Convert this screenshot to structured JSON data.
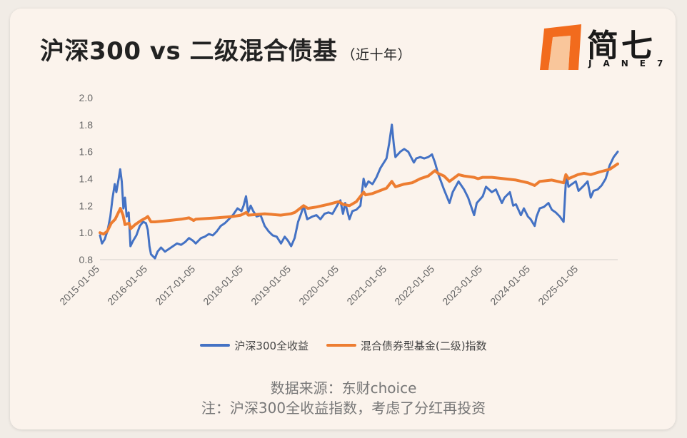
{
  "header": {
    "title": "沪深300 vs 二级混合债基",
    "subtitle": "（近十年）"
  },
  "logo": {
    "name": "简七",
    "en": "JANE7",
    "color": "#f26b1d"
  },
  "chart_data": {
    "type": "line",
    "title": "沪深300 vs 二级混合债基",
    "xlabel": "",
    "ylabel": "",
    "ylim": [
      0.8,
      2.0
    ],
    "yticks": [
      "0.8",
      "1.0",
      "1.2",
      "1.4",
      "1.6",
      "1.8",
      "2.0"
    ],
    "xtick_labels": [
      "2015-01-05",
      "2016-01-05",
      "2017-01-05",
      "2018-01-05",
      "2019-01-05",
      "2020-01-05",
      "2021-01-05",
      "2022-01-05",
      "2023-01-05",
      "2024-01-05",
      "2025-01-05"
    ],
    "x_range": [
      "2015-01-05",
      "2025-10-31"
    ],
    "grid": false,
    "legend_position": "bottom",
    "series": [
      {
        "name": "沪深300全收益",
        "color": "#4472c4",
        "points": [
          [
            "2015-01-05",
            0.98
          ],
          [
            "2015-01-20",
            0.92
          ],
          [
            "2015-02-10",
            0.95
          ],
          [
            "2015-03-05",
            1.02
          ],
          [
            "2015-03-25",
            1.12
          ],
          [
            "2015-04-10",
            1.25
          ],
          [
            "2015-04-28",
            1.36
          ],
          [
            "2015-05-10",
            1.3
          ],
          [
            "2015-05-28",
            1.4
          ],
          [
            "2015-06-08",
            1.47
          ],
          [
            "2015-06-20",
            1.38
          ],
          [
            "2015-07-03",
            1.18
          ],
          [
            "2015-07-15",
            1.26
          ],
          [
            "2015-07-28",
            1.12
          ],
          [
            "2015-08-12",
            1.15
          ],
          [
            "2015-08-26",
            0.9
          ],
          [
            "2015-09-15",
            0.94
          ],
          [
            "2015-10-10",
            0.98
          ],
          [
            "2015-11-05",
            1.05
          ],
          [
            "2015-11-30",
            1.08
          ],
          [
            "2015-12-22",
            1.07
          ],
          [
            "2016-01-05",
            1.02
          ],
          [
            "2016-01-18",
            0.9
          ],
          [
            "2016-01-29",
            0.84
          ],
          [
            "2016-02-29",
            0.81
          ],
          [
            "2016-03-20",
            0.86
          ],
          [
            "2016-04-15",
            0.89
          ],
          [
            "2016-05-15",
            0.86
          ],
          [
            "2016-06-15",
            0.88
          ],
          [
            "2016-07-15",
            0.9
          ],
          [
            "2016-08-15",
            0.92
          ],
          [
            "2016-09-15",
            0.91
          ],
          [
            "2016-10-15",
            0.93
          ],
          [
            "2016-11-15",
            0.96
          ],
          [
            "2016-12-15",
            0.94
          ],
          [
            "2017-01-05",
            0.92
          ],
          [
            "2017-02-15",
            0.96
          ],
          [
            "2017-03-15",
            0.97
          ],
          [
            "2017-04-15",
            0.99
          ],
          [
            "2017-05-15",
            0.98
          ],
          [
            "2017-06-15",
            1.01
          ],
          [
            "2017-07-15",
            1.05
          ],
          [
            "2017-08-15",
            1.07
          ],
          [
            "2017-09-15",
            1.1
          ],
          [
            "2017-10-15",
            1.13
          ],
          [
            "2017-11-20",
            1.18
          ],
          [
            "2017-12-20",
            1.16
          ],
          [
            "2018-01-05",
            1.2
          ],
          [
            "2018-01-24",
            1.27
          ],
          [
            "2018-02-09",
            1.15
          ],
          [
            "2018-02-28",
            1.2
          ],
          [
            "2018-03-20",
            1.16
          ],
          [
            "2018-04-15",
            1.12
          ],
          [
            "2018-05-15",
            1.13
          ],
          [
            "2018-06-15",
            1.05
          ],
          [
            "2018-07-15",
            1.01
          ],
          [
            "2018-08-15",
            0.98
          ],
          [
            "2018-09-15",
            0.97
          ],
          [
            "2018-10-18",
            0.92
          ],
          [
            "2018-11-15",
            0.97
          ],
          [
            "2018-12-10",
            0.94
          ],
          [
            "2019-01-03",
            0.9
          ],
          [
            "2019-01-30",
            0.96
          ],
          [
            "2019-02-25",
            1.08
          ],
          [
            "2019-03-20",
            1.14
          ],
          [
            "2019-04-08",
            1.2
          ],
          [
            "2019-05-06",
            1.1
          ],
          [
            "2019-06-15",
            1.12
          ],
          [
            "2019-07-15",
            1.13
          ],
          [
            "2019-08-15",
            1.1
          ],
          [
            "2019-09-15",
            1.14
          ],
          [
            "2019-10-15",
            1.15
          ],
          [
            "2019-11-15",
            1.14
          ],
          [
            "2019-12-31",
            1.22
          ],
          [
            "2020-01-14",
            1.24
          ],
          [
            "2020-02-03",
            1.14
          ],
          [
            "2020-02-20",
            1.22
          ],
          [
            "2020-03-23",
            1.1
          ],
          [
            "2020-04-15",
            1.16
          ],
          [
            "2020-05-15",
            1.17
          ],
          [
            "2020-06-15",
            1.2
          ],
          [
            "2020-07-09",
            1.4
          ],
          [
            "2020-07-24",
            1.34
          ],
          [
            "2020-08-15",
            1.38
          ],
          [
            "2020-09-15",
            1.36
          ],
          [
            "2020-10-15",
            1.41
          ],
          [
            "2020-11-15",
            1.48
          ],
          [
            "2020-12-31",
            1.55
          ],
          [
            "2021-01-20",
            1.66
          ],
          [
            "2021-02-10",
            1.8
          ],
          [
            "2021-02-25",
            1.65
          ],
          [
            "2021-03-09",
            1.56
          ],
          [
            "2021-04-15",
            1.6
          ],
          [
            "2021-05-15",
            1.62
          ],
          [
            "2021-06-15",
            1.6
          ],
          [
            "2021-07-28",
            1.52
          ],
          [
            "2021-08-15",
            1.55
          ],
          [
            "2021-09-15",
            1.56
          ],
          [
            "2021-10-15",
            1.55
          ],
          [
            "2021-11-15",
            1.56
          ],
          [
            "2021-12-13",
            1.58
          ],
          [
            "2022-01-05",
            1.52
          ],
          [
            "2022-01-28",
            1.44
          ],
          [
            "2022-03-15",
            1.32
          ],
          [
            "2022-04-26",
            1.22
          ],
          [
            "2022-05-20",
            1.3
          ],
          [
            "2022-07-04",
            1.38
          ],
          [
            "2022-08-15",
            1.32
          ],
          [
            "2022-09-15",
            1.26
          ],
          [
            "2022-10-31",
            1.13
          ],
          [
            "2022-11-20",
            1.22
          ],
          [
            "2023-01-05",
            1.27
          ],
          [
            "2023-01-30",
            1.34
          ],
          [
            "2023-03-15",
            1.3
          ],
          [
            "2023-04-15",
            1.32
          ],
          [
            "2023-05-31",
            1.22
          ],
          [
            "2023-06-20",
            1.26
          ],
          [
            "2023-07-31",
            1.3
          ],
          [
            "2023-08-25",
            1.2
          ],
          [
            "2023-09-15",
            1.21
          ],
          [
            "2023-10-23",
            1.13
          ],
          [
            "2023-11-15",
            1.18
          ],
          [
            "2023-12-15",
            1.12
          ],
          [
            "2024-01-05",
            1.1
          ],
          [
            "2024-02-05",
            1.05
          ],
          [
            "2024-02-20",
            1.12
          ],
          [
            "2024-03-15",
            1.18
          ],
          [
            "2024-04-15",
            1.19
          ],
          [
            "2024-05-20",
            1.22
          ],
          [
            "2024-06-15",
            1.17
          ],
          [
            "2024-07-15",
            1.15
          ],
          [
            "2024-08-15",
            1.12
          ],
          [
            "2024-09-13",
            1.08
          ],
          [
            "2024-09-30",
            1.38
          ],
          [
            "2024-10-08",
            1.42
          ],
          [
            "2024-10-20",
            1.34
          ],
          [
            "2024-11-15",
            1.36
          ],
          [
            "2024-12-15",
            1.38
          ],
          [
            "2025-01-05",
            1.31
          ],
          [
            "2025-02-15",
            1.35
          ],
          [
            "2025-03-15",
            1.38
          ],
          [
            "2025-04-08",
            1.26
          ],
          [
            "2025-04-30",
            1.31
          ],
          [
            "2025-05-31",
            1.32
          ],
          [
            "2025-06-30",
            1.35
          ],
          [
            "2025-07-31",
            1.4
          ],
          [
            "2025-08-31",
            1.5
          ],
          [
            "2025-09-30",
            1.56
          ],
          [
            "2025-10-31",
            1.6
          ]
        ]
      },
      {
        "name": "混合债券型基金(二级)指数",
        "color": "#ed7d31",
        "points": [
          [
            "2015-01-05",
            1.0
          ],
          [
            "2015-02-01",
            0.99
          ],
          [
            "2015-03-01",
            1.01
          ],
          [
            "2015-04-01",
            1.07
          ],
          [
            "2015-05-01",
            1.1
          ],
          [
            "2015-06-10",
            1.18
          ],
          [
            "2015-06-30",
            1.13
          ],
          [
            "2015-07-15",
            1.06
          ],
          [
            "2015-08-15",
            1.07
          ],
          [
            "2015-08-28",
            1.03
          ],
          [
            "2015-10-01",
            1.06
          ],
          [
            "2015-11-15",
            1.09
          ],
          [
            "2015-12-22",
            1.11
          ],
          [
            "2016-01-05",
            1.12
          ],
          [
            "2016-01-29",
            1.08
          ],
          [
            "2016-03-01",
            1.08
          ],
          [
            "2016-06-15",
            1.09
          ],
          [
            "2016-09-15",
            1.1
          ],
          [
            "2016-11-15",
            1.11
          ],
          [
            "2016-12-20",
            1.09
          ],
          [
            "2017-01-05",
            1.1
          ],
          [
            "2017-06-15",
            1.11
          ],
          [
            "2017-10-15",
            1.12
          ],
          [
            "2017-12-15",
            1.13
          ],
          [
            "2018-01-26",
            1.15
          ],
          [
            "2018-02-10",
            1.13
          ],
          [
            "2018-06-15",
            1.14
          ],
          [
            "2018-10-15",
            1.13
          ],
          [
            "2018-12-31",
            1.14
          ],
          [
            "2019-01-31",
            1.15
          ],
          [
            "2019-04-08",
            1.2
          ],
          [
            "2019-05-10",
            1.18
          ],
          [
            "2019-07-15",
            1.19
          ],
          [
            "2019-10-15",
            1.21
          ],
          [
            "2019-12-31",
            1.23
          ],
          [
            "2020-02-03",
            1.21
          ],
          [
            "2020-03-23",
            1.2
          ],
          [
            "2020-05-15",
            1.23
          ],
          [
            "2020-07-10",
            1.3
          ],
          [
            "2020-07-24",
            1.28
          ],
          [
            "2020-09-15",
            1.29
          ],
          [
            "2020-12-31",
            1.33
          ],
          [
            "2021-02-10",
            1.38
          ],
          [
            "2021-03-09",
            1.34
          ],
          [
            "2021-05-15",
            1.36
          ],
          [
            "2021-07-15",
            1.37
          ],
          [
            "2021-09-15",
            1.4
          ],
          [
            "2021-11-15",
            1.42
          ],
          [
            "2022-01-05",
            1.46
          ],
          [
            "2022-01-28",
            1.44
          ],
          [
            "2022-03-15",
            1.42
          ],
          [
            "2022-04-26",
            1.38
          ],
          [
            "2022-07-04",
            1.43
          ],
          [
            "2022-08-15",
            1.42
          ],
          [
            "2022-10-31",
            1.41
          ],
          [
            "2022-11-30",
            1.4
          ],
          [
            "2023-01-05",
            1.41
          ],
          [
            "2023-03-15",
            1.41
          ],
          [
            "2023-06-15",
            1.4
          ],
          [
            "2023-09-15",
            1.39
          ],
          [
            "2023-12-15",
            1.37
          ],
          [
            "2024-02-05",
            1.35
          ],
          [
            "2024-03-15",
            1.38
          ],
          [
            "2024-06-15",
            1.39
          ],
          [
            "2024-09-13",
            1.37
          ],
          [
            "2024-09-30",
            1.43
          ],
          [
            "2024-10-20",
            1.4
          ],
          [
            "2024-12-31",
            1.43
          ],
          [
            "2025-02-15",
            1.44
          ],
          [
            "2025-04-08",
            1.43
          ],
          [
            "2025-06-15",
            1.45
          ],
          [
            "2025-08-31",
            1.47
          ],
          [
            "2025-10-31",
            1.51
          ]
        ]
      }
    ]
  },
  "legend": {
    "items": [
      {
        "label": "沪深300全收益",
        "color": "#4472c4"
      },
      {
        "label": "混合债券型基金(二级)指数",
        "color": "#ed7d31"
      }
    ]
  },
  "footer": {
    "source": "数据来源：东财choice",
    "note": "注：沪深300全收益指数，考虑了分红再投资"
  }
}
